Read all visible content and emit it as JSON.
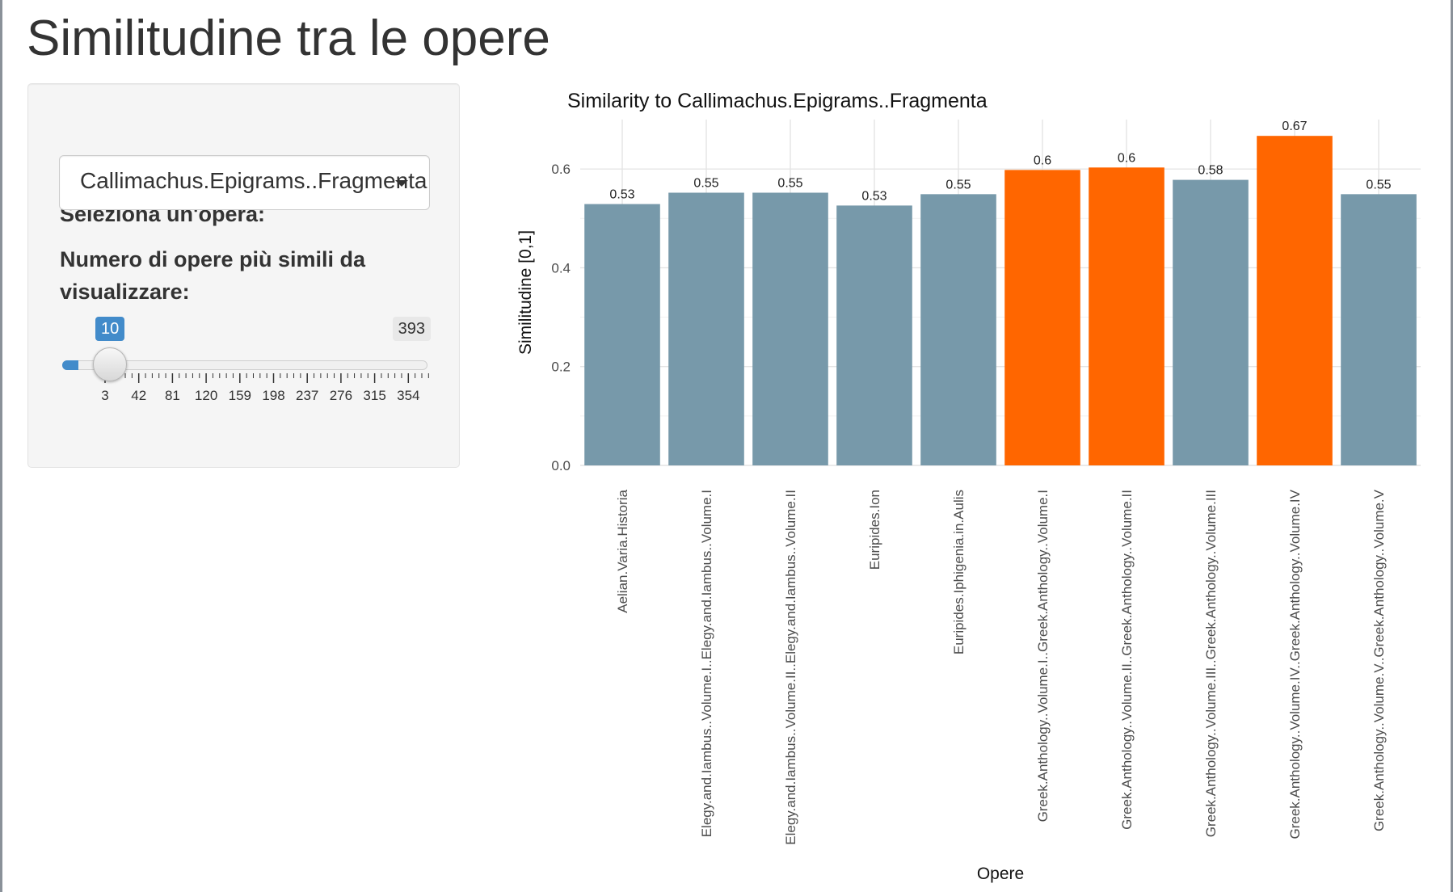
{
  "page": {
    "title": "Similitudine tra le opere"
  },
  "controls": {
    "select_label": "Seleziona un'opera:",
    "select_value": "Callimachus.Epigrams..Fragmenta",
    "slider_label": "Numero di opere più simili da visualizzare:",
    "slider_value": "10",
    "slider_max": "393",
    "slider_ticks": [
      "3",
      "42",
      "81",
      "120",
      "159",
      "198",
      "237",
      "276",
      "315",
      "354",
      "393"
    ]
  },
  "colors": {
    "default_bar": "#7799aa",
    "highlight_bar": "#ff6600",
    "slider_accent": "#428bca"
  },
  "chart_data": {
    "type": "bar",
    "title": "Similarity to Callimachus.Epigrams..Fragmenta",
    "xlabel": "Opere",
    "ylabel": "Similitudine [0,1]",
    "ylim": [
      0,
      0.7
    ],
    "yticks": [
      "0.0",
      "0.2",
      "0.4",
      "0.6"
    ],
    "grid": true,
    "categories": [
      "Aelian.Varia.Historia",
      "Elegy.and.Iambus..Volume.I..Elegy.and.Iambus..Volume.I",
      "Elegy.and.Iambus..Volume.II..Elegy.and.Iambus..Volume.II",
      "Euripides.Ion",
      "Euripides.Iphigenia.in.Aulis",
      "Greek.Anthology..Volume.I..Greek.Anthology..Volume.I",
      "Greek.Anthology..Volume.II..Greek.Anthology..Volume.II",
      "Greek.Anthology..Volume.III..Greek.Anthology..Volume.III",
      "Greek.Anthology..Volume.IV..Greek.Anthology..Volume.IV",
      "Greek.Anthology..Volume.V..Greek.Anthology..Volume.V"
    ],
    "values": [
      0.529,
      0.552,
      0.552,
      0.526,
      0.549,
      0.598,
      0.603,
      0.578,
      0.667,
      0.549
    ],
    "labels": [
      "0.53",
      "0.55",
      "0.55",
      "0.53",
      "0.55",
      "0.6",
      "0.6",
      "0.58",
      "0.67",
      "0.55"
    ],
    "highlighted": [
      false,
      false,
      false,
      false,
      false,
      true,
      true,
      false,
      true,
      false
    ]
  }
}
